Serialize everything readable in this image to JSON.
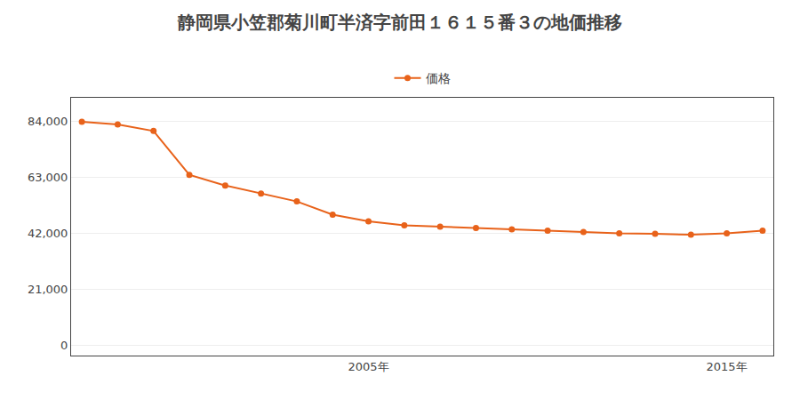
{
  "chart_data": {
    "type": "line",
    "title": "静岡県小笠郡菊川町半済字前田１６１５番３の地価推移",
    "x": [
      1997,
      1998,
      1999,
      2000,
      2001,
      2002,
      2003,
      2004,
      2005,
      2006,
      2007,
      2008,
      2009,
      2010,
      2011,
      2012,
      2013,
      2014,
      2015,
      2016
    ],
    "series": [
      {
        "name": "価格",
        "color": "#E8621A",
        "marker": "circle",
        "line_style": "solid",
        "values": [
          84000,
          83000,
          80500,
          64000,
          60000,
          57000,
          54000,
          49000,
          46500,
          45000,
          44500,
          44000,
          43500,
          43000,
          42500,
          42000,
          41800,
          41500,
          42000,
          43000
        ]
      }
    ],
    "xlim": [
      1996.7,
      2016.3
    ],
    "xticks": [
      {
        "value": 2005,
        "label": "2005年"
      },
      {
        "value": 2015,
        "label": "2015年"
      }
    ],
    "ylim": [
      -4000,
      93000
    ],
    "yticks": [
      0,
      {
        "value": 21000,
        "label": "21,000"
      },
      {
        "value": 42000,
        "label": "42,000"
      },
      {
        "value": 63000,
        "label": "63,000"
      },
      {
        "value": 84000,
        "label": "84,000"
      }
    ],
    "grid": true,
    "legend": "top"
  }
}
